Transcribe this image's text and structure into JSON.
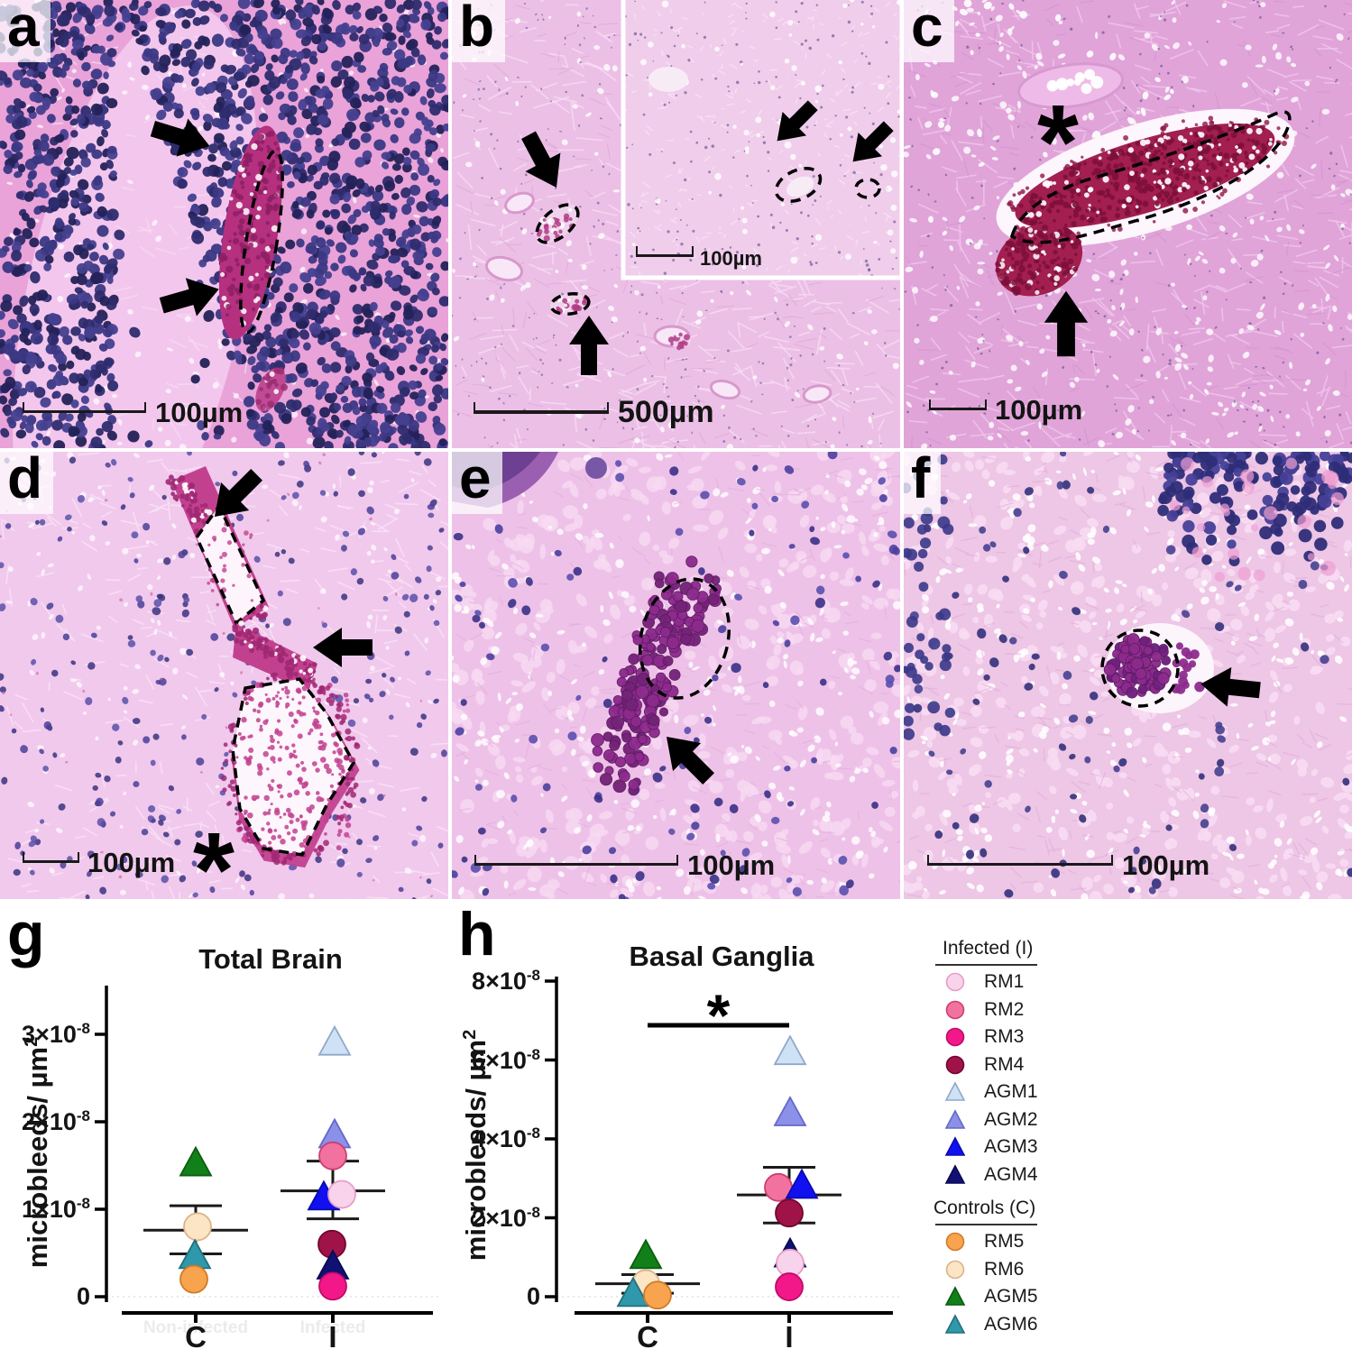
{
  "figure_background": "#ffffff",
  "panels": {
    "a": {
      "label": "a",
      "scale_label": "100µm"
    },
    "b": {
      "label": "b",
      "scale_label": "500µm",
      "inset_scale_label": "100µm"
    },
    "c": {
      "label": "c",
      "scale_label": "100µm",
      "asterisk": "*"
    },
    "d": {
      "label": "d",
      "scale_label": "100µm",
      "asterisk": "*"
    },
    "e": {
      "label": "e",
      "scale_label": "100µm"
    },
    "f": {
      "label": "f",
      "scale_label": "100µm"
    }
  },
  "legend": {
    "groups": [
      {
        "title": "Infected (I)",
        "items": [
          {
            "id": "RM1",
            "shape": "circle",
            "fill": "#f8d4ec",
            "stroke": "#e89cc6"
          },
          {
            "id": "RM2",
            "shape": "circle",
            "fill": "#f1729f",
            "stroke": "#cf3d71"
          },
          {
            "id": "RM3",
            "shape": "circle",
            "fill": "#f2188a",
            "stroke": "#c00b66"
          },
          {
            "id": "RM4",
            "shape": "circle",
            "fill": "#a01349",
            "stroke": "#71082f"
          },
          {
            "id": "AGM1",
            "shape": "triangle",
            "fill": "#cfe1f4",
            "stroke": "#8fa8cc"
          },
          {
            "id": "AGM2",
            "shape": "triangle",
            "fill": "#8b90e8",
            "stroke": "#6468c8"
          },
          {
            "id": "AGM3",
            "shape": "triangle",
            "fill": "#1010f0",
            "stroke": "#0b0bb0"
          },
          {
            "id": "AGM4",
            "shape": "triangle",
            "fill": "#111174",
            "stroke": "#0a0a52"
          }
        ]
      },
      {
        "title": "Controls (C)",
        "items": [
          {
            "id": "RM5",
            "shape": "circle",
            "fill": "#f8a44e",
            "stroke": "#cf7a26"
          },
          {
            "id": "RM6",
            "shape": "circle",
            "fill": "#fce5c4",
            "stroke": "#d9b488"
          },
          {
            "id": "AGM5",
            "shape": "triangle",
            "fill": "#128018",
            "stroke": "#0b5c10"
          },
          {
            "id": "AGM6",
            "shape": "triangle",
            "fill": "#2f98aa",
            "stroke": "#20707e"
          }
        ]
      }
    ]
  },
  "chart_data": [
    {
      "id": "g",
      "panel_label": "g",
      "type": "scatter",
      "title": "Total Brain",
      "ylabel_base": "microbleeds/ µm",
      "ylabel_sup": "2",
      "xlabel": "",
      "value_scale": "×10⁻⁸",
      "ylim": [
        0,
        3.5
      ],
      "yticks": [
        {
          "v": 0,
          "base": "0",
          "sup": ""
        },
        {
          "v": 1,
          "base": "1×10",
          "sup": "-8"
        },
        {
          "v": 2,
          "base": "2×10",
          "sup": "-8"
        },
        {
          "v": 3,
          "base": "3×10",
          "sup": "-8"
        }
      ],
      "categories": [
        {
          "key": "C",
          "label": "C",
          "ghost": "Non-infected"
        },
        {
          "key": "I",
          "label": "I",
          "ghost": "Infected"
        }
      ],
      "points": [
        {
          "subject": "AGM5",
          "cat": "C",
          "value": 1.52,
          "dx": 0
        },
        {
          "subject": "RM6",
          "cat": "C",
          "value": 0.8,
          "dx": 2
        },
        {
          "subject": "AGM6",
          "cat": "C",
          "value": 0.46,
          "dx": -1
        },
        {
          "subject": "RM5",
          "cat": "C",
          "value": 0.2,
          "dx": -2
        },
        {
          "subject": "AGM1",
          "cat": "I",
          "value": 2.9,
          "dx": 2
        },
        {
          "subject": "AGM2",
          "cat": "I",
          "value": 1.84,
          "dx": 2
        },
        {
          "subject": "RM2",
          "cat": "I",
          "value": 1.61,
          "dx": 0
        },
        {
          "subject": "AGM3",
          "cat": "I",
          "value": 1.13,
          "dx": -10
        },
        {
          "subject": "RM1",
          "cat": "I",
          "value": 1.17,
          "dx": 10
        },
        {
          "subject": "RM4",
          "cat": "I",
          "value": 0.6,
          "dx": -1
        },
        {
          "subject": "AGM4",
          "cat": "I",
          "value": 0.34,
          "dx": 0
        },
        {
          "subject": "RM3",
          "cat": "I",
          "value": 0.12,
          "dx": 0
        }
      ],
      "summary": [
        {
          "cat": "C",
          "mean": 0.76,
          "upper": 1.04,
          "lower": 0.49
        },
        {
          "cat": "I",
          "mean": 1.21,
          "upper": 1.55,
          "lower": 0.89
        }
      ]
    },
    {
      "id": "h",
      "panel_label": "h",
      "type": "scatter",
      "title": "Basal Ganglia",
      "ylabel_base": "microbleeds/ µm",
      "ylabel_sup": "2",
      "xlabel": "",
      "value_scale": "×10⁻⁸",
      "ylim": [
        0,
        8
      ],
      "yticks": [
        {
          "v": 0,
          "base": "0",
          "sup": ""
        },
        {
          "v": 2,
          "base": "2×10",
          "sup": "-8"
        },
        {
          "v": 4,
          "base": "4×10",
          "sup": "-8"
        },
        {
          "v": 6,
          "base": "6×10",
          "sup": "-8"
        },
        {
          "v": 8,
          "base": "8×10",
          "sup": "-8"
        }
      ],
      "categories": [
        {
          "key": "C",
          "label": "C",
          "ghost": ""
        },
        {
          "key": "I",
          "label": "I",
          "ghost": ""
        }
      ],
      "points": [
        {
          "subject": "AGM5",
          "cat": "C",
          "value": 1.02,
          "dx": -2
        },
        {
          "subject": "RM6",
          "cat": "C",
          "value": 0.33,
          "dx": -2
        },
        {
          "subject": "AGM6",
          "cat": "C",
          "value": 0.06,
          "dx": -16
        },
        {
          "subject": "RM5",
          "cat": "C",
          "value": 0.04,
          "dx": 11
        },
        {
          "subject": "AGM1",
          "cat": "I",
          "value": 6.19,
          "dx": 1
        },
        {
          "subject": "AGM2",
          "cat": "I",
          "value": 4.64,
          "dx": 1
        },
        {
          "subject": "RM2",
          "cat": "I",
          "value": 2.77,
          "dx": -12
        },
        {
          "subject": "AGM3",
          "cat": "I",
          "value": 2.8,
          "dx": 14
        },
        {
          "subject": "RM4",
          "cat": "I",
          "value": 2.12,
          "dx": 0
        },
        {
          "subject": "AGM4",
          "cat": "I",
          "value": 1.06,
          "dx": 1
        },
        {
          "subject": "RM1",
          "cat": "I",
          "value": 0.85,
          "dx": 1
        },
        {
          "subject": "RM3",
          "cat": "I",
          "value": 0.25,
          "dx": 0
        }
      ],
      "summary": [
        {
          "cat": "C",
          "mean": 0.33,
          "upper": 0.56,
          "lower": 0.09
        },
        {
          "cat": "I",
          "mean": 2.58,
          "upper": 3.28,
          "lower": 1.87
        }
      ],
      "significance": {
        "label": "*",
        "between": [
          "C",
          "I"
        ],
        "bar_v": 6.88,
        "star_v": 7.55
      }
    }
  ]
}
